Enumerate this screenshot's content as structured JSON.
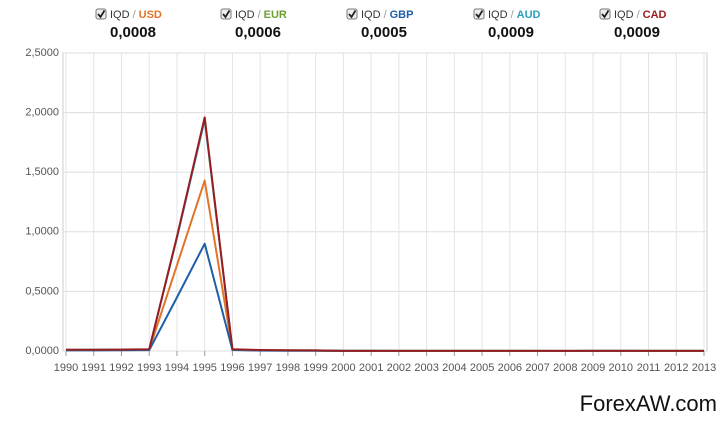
{
  "chart_data": {
    "type": "line",
    "base": "IQD",
    "pair_separator": "/",
    "categories": [
      "1990",
      "1991",
      "1992",
      "1993",
      "1994",
      "1995",
      "1996",
      "1997",
      "1998",
      "1999",
      "2000",
      "2001",
      "2002",
      "2003",
      "2004",
      "2005",
      "2006",
      "2007",
      "2008",
      "2009",
      "2010",
      "2011",
      "2012",
      "2013"
    ],
    "series": [
      {
        "name": "USD",
        "color": "#e2742a",
        "current": {
          "value": 0.0008,
          "label": "0,0008"
        },
        "values": [
          0.008,
          0.008,
          0.009,
          0.01,
          0.72,
          1.43,
          0.01,
          0.004,
          0.003,
          0.003,
          0.0009,
          0.0009,
          0.0008,
          0.0008,
          0.0007,
          0.0007,
          0.0007,
          0.0008,
          0.0008,
          0.0009,
          0.0009,
          0.0009,
          0.0009,
          0.0008
        ]
      },
      {
        "name": "EUR",
        "color": "#6aa12e",
        "current": {
          "value": 0.0006,
          "label": "0,0006"
        },
        "values": [
          null,
          null,
          null,
          null,
          null,
          null,
          null,
          null,
          null,
          0.003,
          0.001,
          0.001,
          0.0009,
          0.0007,
          0.0006,
          0.0006,
          0.0006,
          0.0006,
          0.0005,
          0.0006,
          0.0006,
          0.0006,
          0.0006,
          0.0006
        ]
      },
      {
        "name": "GBP",
        "color": "#1f5fa8",
        "current": {
          "value": 0.0005,
          "label": "0,0005"
        },
        "values": [
          0.005,
          0.005,
          0.006,
          0.007,
          0.45,
          0.9,
          0.008,
          0.003,
          0.002,
          0.002,
          0.0006,
          0.0006,
          0.0005,
          0.0005,
          0.0004,
          0.0004,
          0.0004,
          0.0004,
          0.0004,
          0.0006,
          0.0006,
          0.0005,
          0.0005,
          0.0005
        ]
      },
      {
        "name": "AUD",
        "color": "#2aa3b8",
        "current": {
          "value": 0.0009,
          "label": "0,0009"
        },
        "values": [
          0.01,
          0.01,
          0.012,
          0.014,
          0.95,
          1.94,
          0.014,
          0.006,
          0.005,
          0.005,
          0.0015,
          0.0016,
          0.0015,
          0.0012,
          0.001,
          0.001,
          0.001,
          0.0009,
          0.0009,
          0.001,
          0.0009,
          0.0009,
          0.0009,
          0.0009
        ]
      },
      {
        "name": "CAD",
        "color": "#9a1c1f",
        "current": {
          "value": 0.0009,
          "label": "0,0009"
        },
        "values": [
          0.01,
          0.01,
          0.012,
          0.015,
          0.96,
          1.96,
          0.015,
          0.008,
          0.006,
          0.005,
          0.0015,
          0.0014,
          0.0013,
          0.0011,
          0.001,
          0.0009,
          0.0008,
          0.0008,
          0.0009,
          0.001,
          0.0009,
          0.0009,
          0.0009,
          0.0009
        ]
      }
    ],
    "ylim": [
      0,
      2.5
    ],
    "yticks": [
      {
        "value": 0,
        "label": "0,0000"
      },
      {
        "value": 0.5,
        "label": "0,5000"
      },
      {
        "value": 1,
        "label": "1,0000"
      },
      {
        "value": 1.5,
        "label": "1,5000"
      },
      {
        "value": 2,
        "label": "2,0000"
      },
      {
        "value": 2.5,
        "label": "2,5000"
      }
    ],
    "grid": true,
    "watermark": "ForexAW.com"
  }
}
